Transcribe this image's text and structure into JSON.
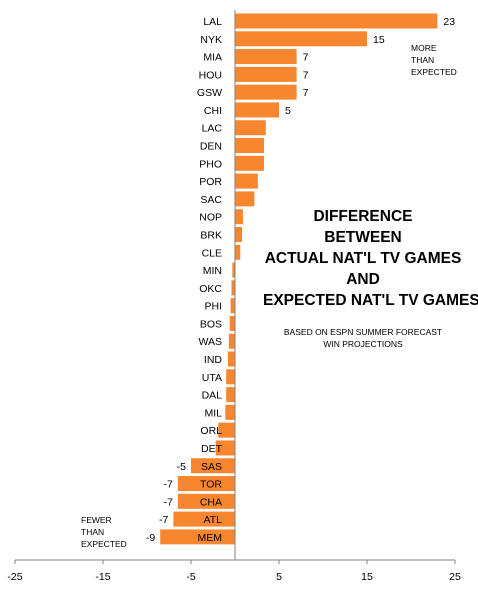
{
  "chart_data": {
    "type": "bar",
    "orientation": "horizontal",
    "categories": [
      "LAL",
      "NYK",
      "MIA",
      "HOU",
      "GSW",
      "CHI",
      "LAC",
      "DEN",
      "PHO",
      "POR",
      "SAC",
      "NOP",
      "BRK",
      "CLE",
      "MIN",
      "OKC",
      "PHI",
      "BOS",
      "WAS",
      "IND",
      "UTA",
      "DAL",
      "MIL",
      "ORL",
      "DET",
      "SAS",
      "TOR",
      "CHA",
      "ATL",
      "MEM"
    ],
    "values": [
      23,
      15,
      7,
      7,
      7,
      5,
      3.5,
      3.3,
      3.3,
      2.6,
      2.2,
      0.9,
      0.8,
      0.6,
      -0.3,
      -0.4,
      -0.5,
      -0.6,
      -0.7,
      -0.8,
      -1,
      -1,
      -1.1,
      -1.9,
      -2.2,
      -5,
      -6.5,
      -6.5,
      -7,
      -8.5
    ],
    "value_labels": [
      "23",
      "15",
      "7",
      "7",
      "7",
      "5",
      "",
      "",
      "",
      "",
      "",
      "",
      "",
      "",
      "",
      "",
      "",
      "",
      "",
      "",
      "",
      "",
      "",
      "",
      "",
      "-5",
      "-7",
      "-7",
      "-7",
      "-9"
    ],
    "xlim": [
      -25,
      25
    ],
    "xticks": [
      "-25",
      "-15",
      "-5",
      "5",
      "15",
      "25"
    ],
    "xtick_values": [
      -25,
      -15,
      -5,
      5,
      15,
      25
    ],
    "bar_color": "#F7862E",
    "grid": false,
    "legend": "none",
    "title_lines": [
      "DIFFERENCE",
      "BETWEEN",
      "ACTUAL NAT'L TV GAMES",
      "AND",
      "EXPECTED NAT'L TV GAMES"
    ],
    "subtitle_lines": [
      "BASED ON ESPN SUMMER FORECAST",
      "WIN PROJECTIONS"
    ],
    "annotations": {
      "more_lines": [
        "MORE",
        "THAN",
        "EXPECTED"
      ],
      "fewer_lines": [
        "FEWER",
        "THAN",
        "EXPECTED"
      ]
    }
  }
}
